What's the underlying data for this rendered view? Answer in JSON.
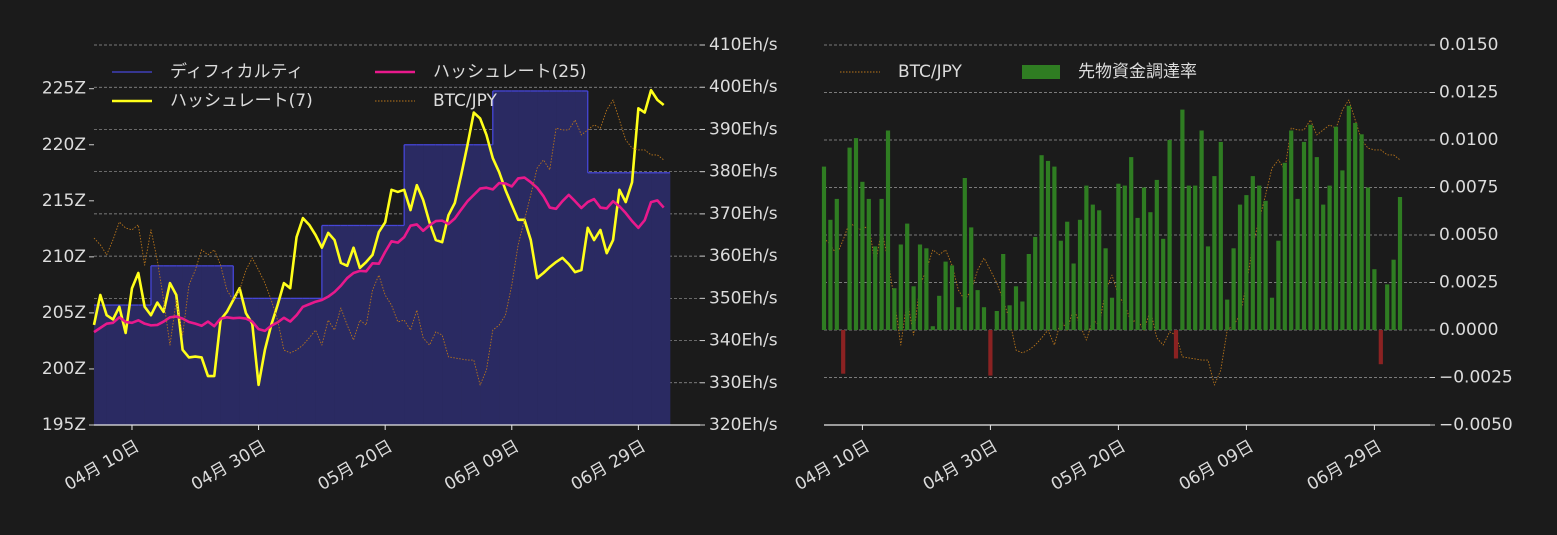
{
  "chart_data": [
    {
      "type": "line",
      "x": [
        "04-04",
        "04-05",
        "04-06",
        "04-07",
        "04-08",
        "04-09",
        "04-10",
        "04-11",
        "04-12",
        "04-13",
        "04-14",
        "04-15",
        "04-16",
        "04-17",
        "04-18",
        "04-19",
        "04-20",
        "04-21",
        "04-22",
        "04-23",
        "04-24",
        "04-25",
        "04-26",
        "04-27",
        "04-28",
        "04-29",
        "04-30",
        "05-01",
        "05-02",
        "05-03",
        "05-04",
        "05-05",
        "05-06",
        "05-07",
        "05-08",
        "05-09",
        "05-10",
        "05-11",
        "05-12",
        "05-13",
        "05-14",
        "05-15",
        "05-16",
        "05-17",
        "05-18",
        "05-19",
        "05-20",
        "05-21",
        "05-22",
        "05-23",
        "05-24",
        "05-25",
        "05-26",
        "05-27",
        "05-28",
        "05-29",
        "05-30",
        "05-31",
        "06-01",
        "06-02",
        "06-03",
        "06-04",
        "06-05",
        "06-06",
        "06-07",
        "06-08",
        "06-09",
        "06-10",
        "06-11",
        "06-12",
        "06-13",
        "06-14",
        "06-15",
        "06-16",
        "06-17",
        "06-18",
        "06-19",
        "06-20",
        "06-21",
        "06-22",
        "06-23",
        "06-24",
        "06-25",
        "06-26",
        "06-27",
        "06-28",
        "06-29",
        "06-30",
        "07-01",
        "07-02",
        "07-03"
      ],
      "xticks": [
        {
          "value": "04-10",
          "label": "04月 10日"
        },
        {
          "value": "04-30",
          "label": "04月 30日"
        },
        {
          "value": "05-20",
          "label": "05月 20日"
        },
        {
          "value": "06-09",
          "label": "06月 09日"
        },
        {
          "value": "06-29",
          "label": "06月 29日"
        }
      ],
      "ylim": [
        195,
        228.9
      ],
      "yticks": [
        {
          "value": 195,
          "label": "195Z"
        },
        {
          "value": 200,
          "label": "200Z"
        },
        {
          "value": 205,
          "label": "205Z"
        },
        {
          "value": 210,
          "label": "210Z"
        },
        {
          "value": 215,
          "label": "215Z"
        },
        {
          "value": 220,
          "label": "220Z"
        },
        {
          "value": 225,
          "label": "225Z"
        }
      ],
      "y2lim": [
        320,
        410
      ],
      "y2ticks": [
        {
          "value": 320,
          "label": "320Eh/s"
        },
        {
          "value": 330,
          "label": "330Eh/s"
        },
        {
          "value": 340,
          "label": "340Eh/s"
        },
        {
          "value": 350,
          "label": "350Eh/s"
        },
        {
          "value": 360,
          "label": "360Eh/s"
        },
        {
          "value": 370,
          "label": "370Eh/s"
        },
        {
          "value": 380,
          "label": "380Eh/s"
        },
        {
          "value": 390,
          "label": "390Eh/s"
        },
        {
          "value": 400,
          "label": "400Eh/s"
        },
        {
          "value": 410,
          "label": "410Eh/s"
        }
      ],
      "y3lim": [
        3490000,
        4555000
      ],
      "grid": "y2",
      "series": [
        {
          "name": "ディフィカルティ",
          "type": "step-area",
          "color": "#4646d8",
          "fill": "#2a2a62",
          "values": [
            205.7,
            205.7,
            205.7,
            205.7,
            205.7,
            205.7,
            205.7,
            205.7,
            205.7,
            209.2,
            209.2,
            209.2,
            209.2,
            209.2,
            209.2,
            209.2,
            209.2,
            209.2,
            209.2,
            209.2,
            209.2,
            209.2,
            206.3,
            206.3,
            206.3,
            206.3,
            206.3,
            206.3,
            206.3,
            206.3,
            206.3,
            206.3,
            206.3,
            206.3,
            206.3,
            206.3,
            212.8,
            212.8,
            212.8,
            212.8,
            212.8,
            212.8,
            212.8,
            212.8,
            212.8,
            212.8,
            212.8,
            212.8,
            212.8,
            220.0,
            220.0,
            220.0,
            220.0,
            220.0,
            220.0,
            220.0,
            220.0,
            220.0,
            220.0,
            220.0,
            220.0,
            220.0,
            220.0,
            224.8,
            224.8,
            224.8,
            224.8,
            224.8,
            224.8,
            224.8,
            224.8,
            224.8,
            224.8,
            224.8,
            224.8,
            224.8,
            224.8,
            224.8,
            217.5,
            217.5,
            217.5,
            217.5,
            217.5,
            217.5,
            217.5,
            217.5,
            217.5,
            217.5,
            217.5,
            217.5,
            217.5
          ]
        },
        {
          "name": "ハッシュレート(7)",
          "type": "line",
          "axis": "y2",
          "color": "#ffff1a",
          "values": [
            343.7,
            350.8,
            346,
            345,
            348,
            341.8,
            352.4,
            356,
            348,
            346,
            349,
            346.8,
            353.6,
            350.8,
            337.8,
            336,
            336.2,
            336,
            331.6,
            331.6,
            344.9,
            346.8,
            349.6,
            352.4,
            346.5,
            344,
            329.5,
            337.8,
            343.7,
            348.4,
            353.6,
            352.4,
            364.5,
            369,
            367.4,
            365,
            362,
            365.5,
            363.8,
            358.4,
            357.7,
            362,
            357.2,
            358.6,
            360.3,
            365.7,
            368,
            375.7,
            375.2,
            375.7,
            370.9,
            376.8,
            373.3,
            368,
            363.8,
            363.3,
            369.7,
            372.6,
            379.2,
            386.3,
            394,
            392.6,
            388.7,
            383.2,
            379.9,
            375.7,
            372.1,
            368.6,
            368.6,
            363.8,
            354.8,
            356,
            357.4,
            358.6,
            359.6,
            358.1,
            356.2,
            356.7,
            366.7,
            363.8,
            366.2,
            360.7,
            363.8,
            375.7,
            372.8,
            377.5,
            395,
            394,
            399.3,
            397,
            395.8
          ]
        },
        {
          "name": "ハッシュレート(25)",
          "type": "line",
          "axis": "y2",
          "color": "#e8198c",
          "values": [
            342.0,
            343,
            344,
            344.2,
            345.5,
            344.4,
            344.2,
            344.8,
            344,
            343.6,
            343.7,
            344.5,
            345.5,
            345.7,
            345.2,
            344.4,
            344,
            343.5,
            344.5,
            343.4,
            345.2,
            345.5,
            345.3,
            345.4,
            345.2,
            344.5,
            342.7,
            342.3,
            343.5,
            344.3,
            345.4,
            344.5,
            346,
            348,
            348.6,
            349.2,
            349.6,
            350.4,
            351.5,
            353,
            354.8,
            356,
            356.5,
            356.4,
            358.3,
            358.2,
            361,
            363.5,
            363.2,
            364.5,
            367.2,
            367.5,
            366,
            367.3,
            368.3,
            368.4,
            367.6,
            368.9,
            371,
            373,
            374.5,
            376,
            376.2,
            375.8,
            377.3,
            377.2,
            376.5,
            378.4,
            378.6,
            377.5,
            376.2,
            374.2,
            371.5,
            371.2,
            373,
            374.5,
            373,
            371.4,
            372.8,
            373.5,
            371.5,
            371.3,
            373,
            371.8,
            370.2,
            368.3,
            366.7,
            368.5,
            372.8,
            373.2,
            371.5
          ]
        },
        {
          "name": "BTC/JPY",
          "type": "line",
          "axis": "y3",
          "style": "dotted",
          "color": "#b8741a",
          "values": [
            4014000,
            3995000,
            3967000,
            4009000,
            4059000,
            4042000,
            4037000,
            4051000,
            3938000,
            4037000,
            3952000,
            3840000,
            3714000,
            3840000,
            3742000,
            3882000,
            3924000,
            3981000,
            3967000,
            3981000,
            3938000,
            3868000,
            3840000,
            3868000,
            3924000,
            3958000,
            3924000,
            3888000,
            3840000,
            3784000,
            3700000,
            3692000,
            3700000,
            3714000,
            3734000,
            3756000,
            3714000,
            3784000,
            3756000,
            3818000,
            3770000,
            3728000,
            3784000,
            3770000,
            3868000,
            3910000,
            3854000,
            3826000,
            3779000,
            3784000,
            3756000,
            3812000,
            3734000,
            3714000,
            3751000,
            3742000,
            3681000,
            3678000,
            3675000,
            3672000,
            3672000,
            3602000,
            3644000,
            3756000,
            3770000,
            3798000,
            3882000,
            3995000,
            4065000,
            4135000,
            4210000,
            4233000,
            4205000,
            4322000,
            4317000,
            4317000,
            4345000,
            4303000,
            4317000,
            4331000,
            4322000,
            4373000,
            4401000,
            4345000,
            4289000,
            4266000,
            4261000,
            4261000,
            4247000,
            4247000,
            4233000
          ]
        }
      ]
    },
    {
      "type": "bar",
      "x": [
        "04-04",
        "04-05",
        "04-06",
        "04-07",
        "04-08",
        "04-09",
        "04-10",
        "04-11",
        "04-12",
        "04-13",
        "04-14",
        "04-15",
        "04-16",
        "04-17",
        "04-18",
        "04-19",
        "04-20",
        "04-21",
        "04-22",
        "04-23",
        "04-24",
        "04-25",
        "04-26",
        "04-27",
        "04-28",
        "04-29",
        "04-30",
        "05-01",
        "05-02",
        "05-03",
        "05-04",
        "05-05",
        "05-06",
        "05-07",
        "05-08",
        "05-09",
        "05-10",
        "05-11",
        "05-12",
        "05-13",
        "05-14",
        "05-15",
        "05-16",
        "05-17",
        "05-18",
        "05-19",
        "05-20",
        "05-21",
        "05-22",
        "05-23",
        "05-24",
        "05-25",
        "05-26",
        "05-27",
        "05-28",
        "05-29",
        "05-30",
        "05-31",
        "06-01",
        "06-02",
        "06-03",
        "06-04",
        "06-05",
        "06-06",
        "06-07",
        "06-08",
        "06-09",
        "06-10",
        "06-11",
        "06-12",
        "06-13",
        "06-14",
        "06-15",
        "06-16",
        "06-17",
        "06-18",
        "06-19",
        "06-20",
        "06-21",
        "06-22",
        "06-23",
        "06-24",
        "06-25",
        "06-26",
        "06-27",
        "06-28",
        "06-29",
        "06-30",
        "07-01",
        "07-02",
        "07-03"
      ],
      "xticks": [
        {
          "value": "04-10",
          "label": "04月 10日"
        },
        {
          "value": "04-30",
          "label": "04月 30日"
        },
        {
          "value": "05-20",
          "label": "05月 20日"
        },
        {
          "value": "06-09",
          "label": "06月 09日"
        },
        {
          "value": "06-29",
          "label": "06月 29日"
        }
      ],
      "ylim": [
        -0.005,
        0.015
      ],
      "yticks": [
        {
          "value": -0.005,
          "label": "−0.0050"
        },
        {
          "value": -0.0025,
          "label": "−0.0025"
        },
        {
          "value": 0,
          "label": "0.0000"
        },
        {
          "value": 0.0025,
          "label": "0.0025"
        },
        {
          "value": 0.005,
          "label": "0.0050"
        },
        {
          "value": 0.0075,
          "label": "0.0075"
        },
        {
          "value": 0.01,
          "label": "0.0100"
        },
        {
          "value": 0.0125,
          "label": "0.0125"
        },
        {
          "value": 0.015,
          "label": "0.0150"
        }
      ],
      "y3lim": [
        3490000,
        4555000
      ],
      "grid": "y",
      "series": [
        {
          "name": "BTC/JPY",
          "type": "line",
          "axis": "y3",
          "style": "dotted",
          "color": "#b8741a",
          "values": [
            4014000,
            3995000,
            3967000,
            4009000,
            4059000,
            4042000,
            4037000,
            4051000,
            3938000,
            4037000,
            3952000,
            3840000,
            3714000,
            3840000,
            3742000,
            3882000,
            3924000,
            3981000,
            3967000,
            3981000,
            3938000,
            3868000,
            3840000,
            3868000,
            3924000,
            3958000,
            3924000,
            3888000,
            3840000,
            3784000,
            3700000,
            3692000,
            3700000,
            3714000,
            3734000,
            3756000,
            3714000,
            3784000,
            3756000,
            3818000,
            3770000,
            3728000,
            3784000,
            3770000,
            3868000,
            3910000,
            3854000,
            3826000,
            3779000,
            3784000,
            3756000,
            3812000,
            3734000,
            3714000,
            3751000,
            3742000,
            3681000,
            3678000,
            3675000,
            3672000,
            3672000,
            3602000,
            3644000,
            3756000,
            3770000,
            3798000,
            3882000,
            3995000,
            4065000,
            4135000,
            4210000,
            4233000,
            4205000,
            4322000,
            4317000,
            4317000,
            4345000,
            4303000,
            4317000,
            4331000,
            4322000,
            4373000,
            4401000,
            4345000,
            4289000,
            4266000,
            4261000,
            4261000,
            4247000,
            4247000,
            4233000
          ]
        },
        {
          "name": "先物資金調達率",
          "type": "bar",
          "color": "#2f7d22",
          "negative_color": "#8b2222",
          "values": [
            0.0086,
            0.0058,
            0.0069,
            -0.0023,
            0.0096,
            0.0101,
            0.0078,
            0.0069,
            0.0044,
            0.0069,
            0.0105,
            0.0022,
            0.0045,
            0.0056,
            0.0023,
            0.0045,
            0.0043,
            0.0002,
            0.0018,
            0.0036,
            0.0034,
            0.0012,
            0.008,
            0.0054,
            0.0021,
            0.0012,
            -0.0024,
            0.001,
            0.004,
            0.0013,
            0.0023,
            0.0015,
            0.004,
            0.0049,
            0.0092,
            0.0089,
            0.0086,
            0.0047,
            0.0057,
            0.0035,
            0.0058,
            0.0076,
            0.0066,
            0.0063,
            0.0043,
            0.0017,
            0.0077,
            0.0076,
            0.0091,
            0.0059,
            0.0075,
            0.0062,
            0.0079,
            0.0048,
            0.01,
            -0.0015,
            0.0116,
            0.0076,
            0.0076,
            0.0105,
            0.0044,
            0.0081,
            0.0099,
            0.0016,
            0.0043,
            0.0066,
            0.0071,
            0.0081,
            0.0076,
            0.0068,
            0.0017,
            0.0047,
            0.0088,
            0.0105,
            0.0069,
            0.0099,
            0.0108,
            0.0091,
            0.0066,
            0.0076,
            0.0107,
            0.0084,
            0.0118,
            0.0109,
            0.0103,
            0.0075,
            0.0032,
            -0.0018,
            0.0024,
            0.0037,
            0.007
          ]
        }
      ]
    }
  ]
}
